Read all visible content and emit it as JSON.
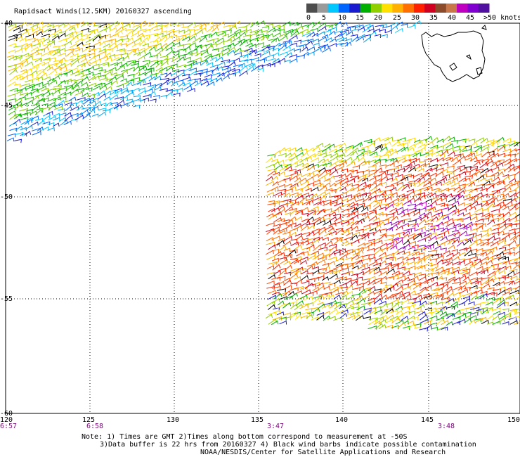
{
  "title": "Rapidsact Winds(12.5KM) 20160327 ascending",
  "legend": {
    "unit_label": ">50 knots",
    "ticks": [
      "0",
      "5",
      "10",
      "15",
      "20",
      "25",
      "30",
      "35",
      "40",
      "45"
    ],
    "colors": [
      "#4d4d4d",
      "#9a9a9a",
      "#00c8ff",
      "#0064ff",
      "#1a1ad0",
      "#00b000",
      "#90d000",
      "#ffe000",
      "#ffb000",
      "#ff7000",
      "#ff2000",
      "#d00020",
      "#8b4a2a",
      "#c87848",
      "#c000c0",
      "#8000d0",
      "#5010a0"
    ]
  },
  "axes": {
    "lon_labels": [
      "120",
      "125",
      "130",
      "135",
      "140",
      "145",
      "150"
    ],
    "lat_labels": [
      "-40",
      "-45",
      "-50",
      "-55",
      "-60"
    ]
  },
  "times": [
    "6:57",
    "6:58",
    "3:47",
    "3:48"
  ],
  "notes": {
    "line1": "Note: 1) Times are GMT 2)Times along bottom correspond to measurement at -50S",
    "line2": "3)Data buffer is 22 hrs from 20160327 4) Black wind barbs indicate possible contamination",
    "line3": "NOAA/NESDIS/Center for Satellite Applications and Research"
  }
}
